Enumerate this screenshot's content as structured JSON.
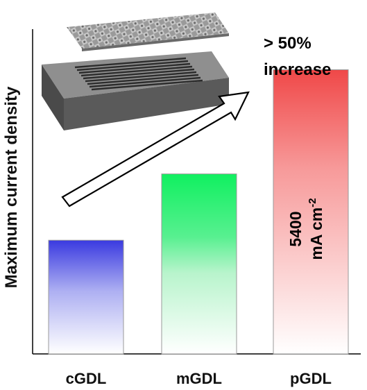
{
  "chart_data": {
    "type": "bar",
    "ylabel": "Maximum current density",
    "categories": [
      "cGDL",
      "mGDL",
      "pGDL"
    ],
    "values": [
      0.36,
      0.57,
      0.9
    ],
    "bar_colors": [
      "#3a3ae0",
      "#10f060",
      "#f04848"
    ],
    "data_label": {
      "value": "5400",
      "unit": "mA cm",
      "superscript": "-2"
    },
    "annotation": {
      "line1": "> 50%",
      "line2": "increase"
    },
    "trend_arrow": true,
    "illustration": "gdl-flowfield-stack",
    "ylim": [
      0,
      1
    ]
  }
}
